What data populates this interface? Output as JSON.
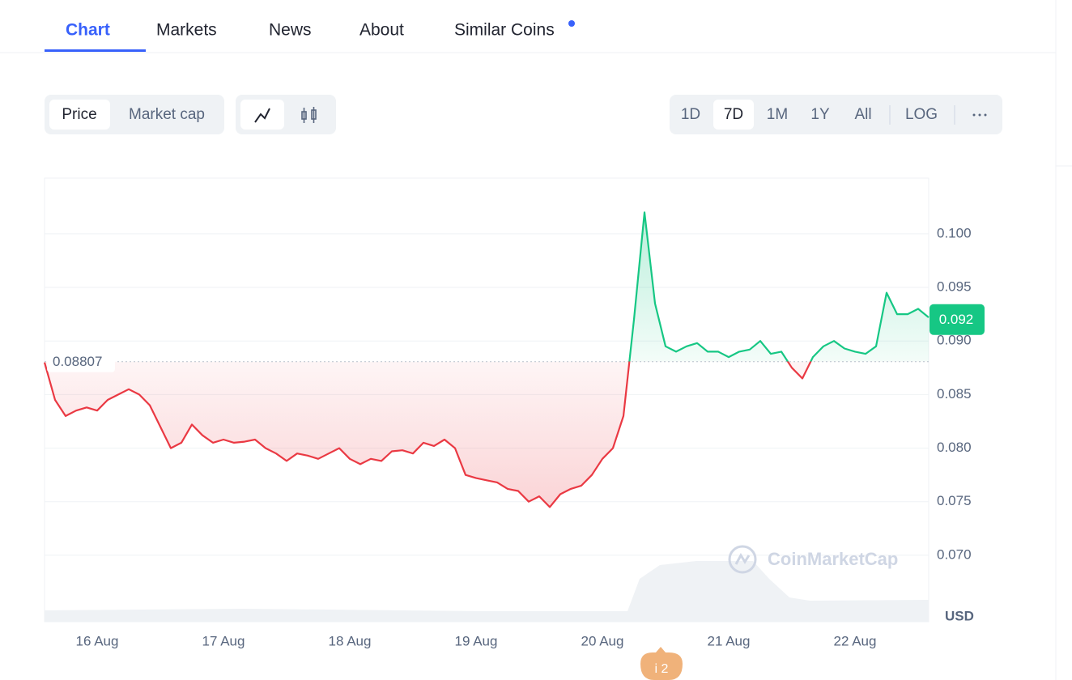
{
  "nav": {
    "tabs": [
      "Chart",
      "Markets",
      "News",
      "About",
      "Similar Coins"
    ]
  },
  "toolbar": {
    "metrics": [
      "Price",
      "Market cap"
    ],
    "ranges": [
      "1D",
      "7D",
      "1M",
      "1Y",
      "All"
    ],
    "log": "LOG"
  },
  "chart_data": {
    "type": "line",
    "categories": [
      null,
      null,
      null,
      null,
      null,
      "16 Aug",
      null,
      null,
      null,
      null,
      null,
      null,
      null,
      null,
      null,
      null,
      null,
      "17 Aug",
      null,
      null,
      null,
      null,
      null,
      null,
      null,
      null,
      null,
      null,
      null,
      "18 Aug",
      null,
      null,
      null,
      null,
      null,
      null,
      null,
      null,
      null,
      null,
      null,
      "19 Aug",
      null,
      null,
      null,
      null,
      null,
      null,
      null,
      null,
      null,
      null,
      null,
      "20 Aug",
      null,
      null,
      null,
      null,
      null,
      null,
      null,
      null,
      null,
      null,
      null,
      "21 Aug",
      null,
      null,
      null,
      null,
      null,
      null,
      null,
      null,
      null,
      null,
      null,
      "22 Aug",
      null,
      null,
      null,
      null,
      null,
      null,
      null
    ],
    "values": [
      0.088,
      0.0845,
      0.083,
      0.0835,
      0.0838,
      0.0835,
      0.0845,
      0.085,
      0.0855,
      0.085,
      0.084,
      0.082,
      0.08,
      0.0805,
      0.0822,
      0.0812,
      0.0805,
      0.0808,
      0.0805,
      0.0806,
      0.0808,
      0.08,
      0.0795,
      0.0788,
      0.0795,
      0.0793,
      0.079,
      0.0795,
      0.08,
      0.079,
      0.0785,
      0.079,
      0.0788,
      0.0797,
      0.0798,
      0.0795,
      0.0805,
      0.0802,
      0.0808,
      0.08,
      0.0775,
      0.0772,
      0.077,
      0.0768,
      0.0762,
      0.076,
      0.075,
      0.0755,
      0.0745,
      0.0757,
      0.0762,
      0.0765,
      0.0775,
      0.079,
      0.08,
      0.083,
      0.092,
      0.102,
      0.0935,
      0.0895,
      0.089,
      0.0895,
      0.0898,
      0.089,
      0.089,
      0.0885,
      0.089,
      0.0892,
      0.09,
      0.0888,
      0.089,
      0.0875,
      0.0865,
      0.0885,
      0.0895,
      0.09,
      0.0893,
      0.089,
      0.0888,
      0.0895,
      0.0945,
      0.0925,
      0.0925,
      0.093,
      0.0922
    ],
    "baseline": 0.08807,
    "current_price": 0.092,
    "ylim": [
      0.0638,
      0.1052
    ],
    "yticks": [
      {
        "value": 0.07,
        "label": "0.070"
      },
      0.075,
      {
        "value": 0.08,
        "label": "0.080"
      },
      0.085,
      {
        "value": 0.09,
        "label": "0.090"
      },
      0.095,
      {
        "value": 0.1,
        "label": "0.100"
      }
    ],
    "unit": "USD",
    "up_color": "#16c784",
    "down_color": "#ea3943",
    "grid": true,
    "watermark": "CoinMarketCap",
    "event_badge": "i 2"
  }
}
